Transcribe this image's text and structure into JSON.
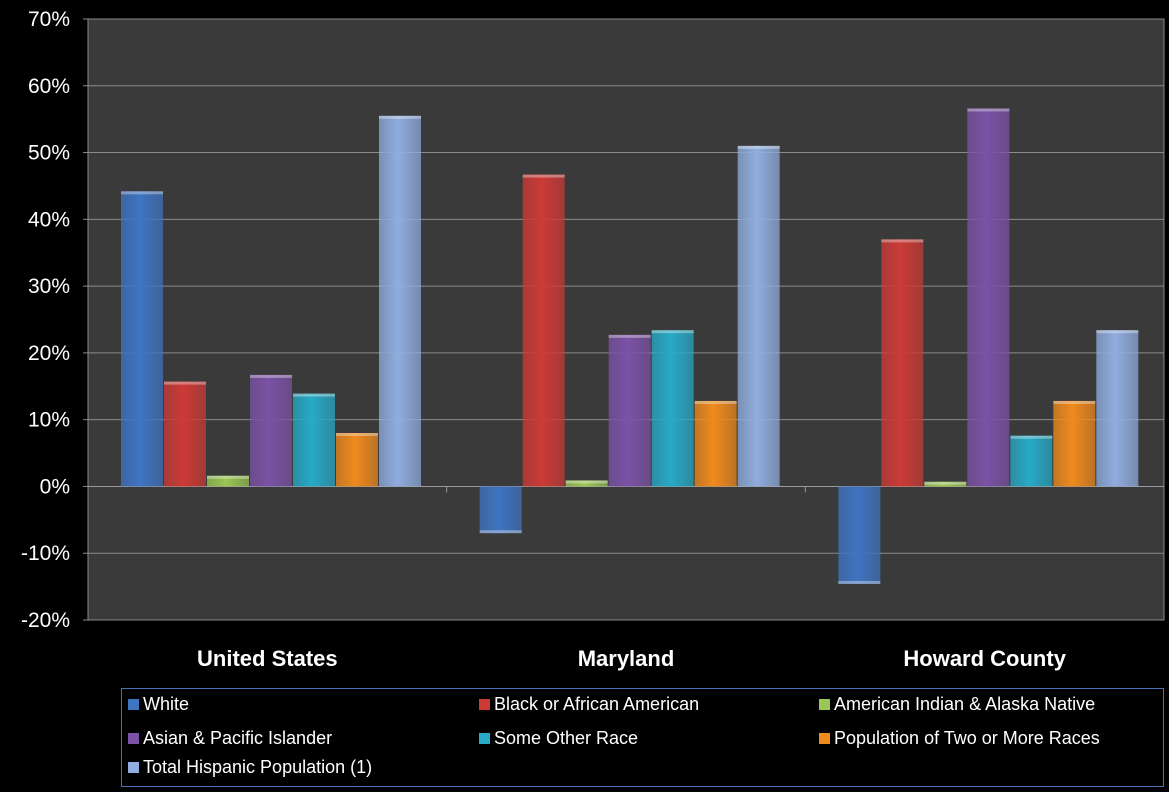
{
  "chart_data": {
    "type": "bar",
    "categories": [
      "United States",
      "Maryland",
      "Howard County"
    ],
    "ylim": [
      -20,
      70
    ],
    "yticks": [
      "-20%",
      "-10%",
      "0%",
      "10%",
      "20%",
      "30%",
      "40%",
      "50%",
      "60%",
      "70%"
    ],
    "ytick_values": [
      -20,
      -10,
      0,
      10,
      20,
      30,
      40,
      50,
      60,
      70
    ],
    "grid": true,
    "legend_position": "bottom",
    "series": [
      {
        "name": "White",
        "values": [
          44.2,
          -7.0,
          -14.6
        ],
        "color": "#3f74c2"
      },
      {
        "name": "Black or African American",
        "values": [
          15.7,
          46.7,
          37.0
        ],
        "color": "#cc3a36"
      },
      {
        "name": "American Indian & Alaska Native",
        "values": [
          1.6,
          0.9,
          0.7
        ],
        "color": "#9ac653"
      },
      {
        "name": "Asian & Pacific Islander",
        "values": [
          16.7,
          22.7,
          56.6
        ],
        "color": "#7b52a6"
      },
      {
        "name": "Some Other Race",
        "values": [
          13.9,
          23.4,
          7.6
        ],
        "color": "#27aac7"
      },
      {
        "name": "Population of Two or More Races",
        "values": [
          8.0,
          12.8,
          12.8
        ],
        "color": "#f08a1d"
      },
      {
        "name": "Total Hispanic Population (1)",
        "values": [
          55.5,
          51.0,
          23.4
        ],
        "color": "#8fadde"
      }
    ]
  }
}
